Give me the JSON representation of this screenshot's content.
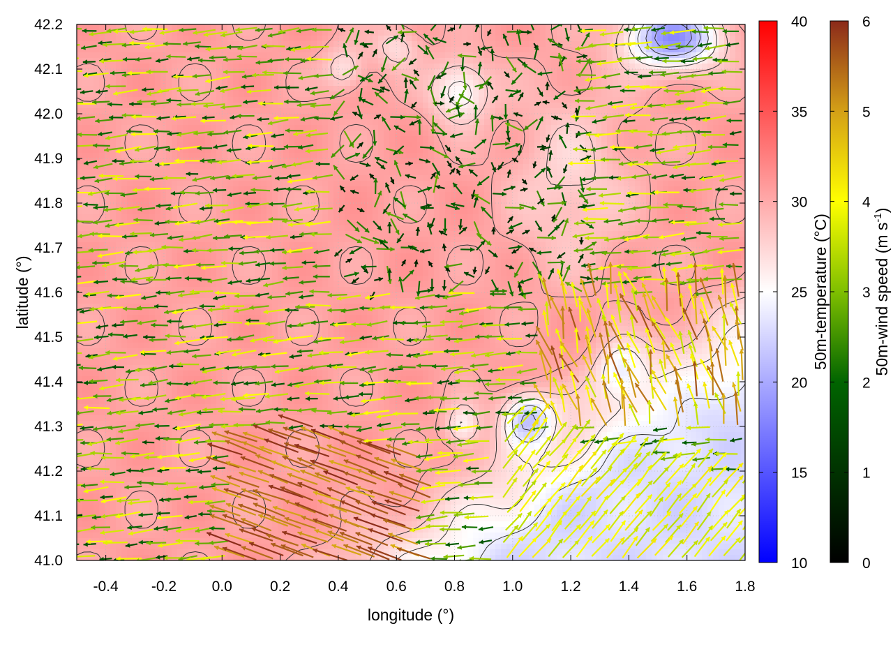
{
  "chart_data": {
    "type": "heatmap",
    "title": "",
    "xlabel": "longitude (°)",
    "ylabel": "latitude (°)",
    "xlim": [
      -0.5,
      1.8
    ],
    "ylim": [
      41.0,
      42.2
    ],
    "x_ticks": [
      "-0.4",
      "-0.2",
      "0.0",
      "0.2",
      "0.4",
      "0.6",
      "0.8",
      "1.0",
      "1.2",
      "1.4",
      "1.6",
      "1.8"
    ],
    "y_ticks": [
      "41.0",
      "41.1",
      "41.2",
      "41.3",
      "41.4",
      "41.5",
      "41.6",
      "41.7",
      "41.8",
      "41.9",
      "42.0",
      "42.1",
      "42.2"
    ],
    "grid": true,
    "overlays": [
      "temperature color field",
      "temperature contour lines",
      "wind vectors colored by speed"
    ],
    "temperature_colorbar": {
      "label": "50m-temperature (°C)",
      "range": [
        10,
        40
      ],
      "ticks": [
        "10",
        "15",
        "20",
        "25",
        "30",
        "35",
        "40"
      ],
      "colors": [
        "#0000ff",
        "#ffffff",
        "#ff0000"
      ]
    },
    "wind_colorbar": {
      "label": "50m-wind speed (m s",
      "label_superscript": "-1",
      "label_close": ")",
      "range": [
        0,
        6
      ],
      "ticks": [
        "0",
        "1",
        "2",
        "3",
        "4",
        "5",
        "6"
      ],
      "colors": [
        "#000000",
        "#006400",
        "#7fbf00",
        "#ffff00",
        "#d4a017",
        "#8b2a1a"
      ]
    },
    "temperature_regions": [
      {
        "region": "west and center",
        "value_c": 30
      },
      {
        "region": "southeast lowland (lon 1.1 to 1.8, lat 41.0 to 41.2)",
        "value_c": 23
      },
      {
        "region": "cold cell near lon 1.05, lat 41.3",
        "value_c": 20
      },
      {
        "region": "northeast corner near lon 1.5, lat 42.15",
        "value_c": 16
      }
    ],
    "wind_regimes": [
      {
        "region": "west",
        "direction": "westward",
        "speed_ms": 3
      },
      {
        "region": "south-central (lon 0.1 to 0.7, lat 41.0 to 41.3)",
        "direction": "north-westward",
        "speed_ms": 5.5
      },
      {
        "region": "southeast (lon 1.0 to 1.8, lat 41.0 to 41.3)",
        "direction": "north-eastward",
        "speed_ms": 3.8
      },
      {
        "region": "north-central (lon 0.4 to 1.2, lat 41.6 to 42.2)",
        "direction": "variable",
        "speed_ms": 1.5
      }
    ]
  }
}
